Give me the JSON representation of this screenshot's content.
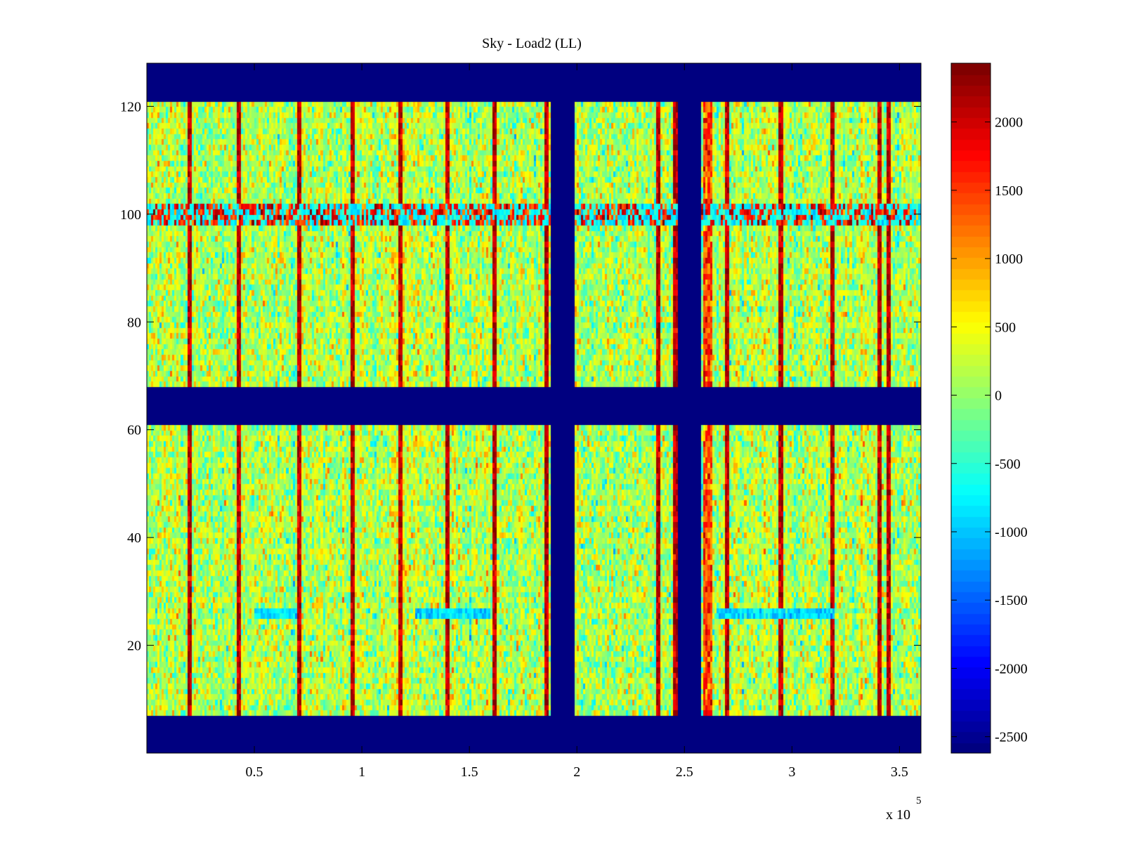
{
  "chart_data": {
    "type": "heatmap",
    "title": "Sky - Load2 (LL)",
    "xlabel": "",
    "ylabel": "",
    "x_exponent_label": "x 10",
    "x_exponent_power": "5",
    "xlim": [
      0,
      3.6
    ],
    "ylim": [
      0,
      128
    ],
    "x_ticks": [
      0.5,
      1,
      1.5,
      2,
      2.5,
      3,
      3.5
    ],
    "x_tick_labels": [
      "0.5",
      "1",
      "1.5",
      "2",
      "2.5",
      "3",
      "3.5"
    ],
    "y_ticks": [
      20,
      40,
      60,
      80,
      100,
      120
    ],
    "y_tick_labels": [
      "20",
      "40",
      "60",
      "80",
      "100",
      "120"
    ],
    "colorbar": {
      "colormap": "jet",
      "clim": [
        -2620,
        2430
      ],
      "ticks": [
        2000,
        1500,
        1000,
        500,
        0,
        -500,
        -1000,
        -1500,
        -2000,
        -2500
      ],
      "tick_labels": [
        "2000",
        "1500",
        "1000",
        "500",
        "0",
        "-500",
        "-1000",
        "-1500",
        "-2000",
        "-2500"
      ]
    },
    "background_value": -2600,
    "noise_mean": 150,
    "noise_std": 380,
    "masked_row_bands": [
      [
        0,
        7
      ],
      [
        61,
        68
      ],
      [
        121,
        128
      ]
    ],
    "masked_col_bands": [
      [
        1.885,
        1.995
      ],
      [
        2.475,
        2.585
      ]
    ],
    "hot_columns": [
      0.2,
      0.43,
      0.71,
      0.96,
      1.18,
      1.4,
      1.62,
      1.86,
      2.38,
      2.46,
      2.7,
      2.95,
      3.19,
      3.41,
      3.45
    ],
    "hot_column_value": 2100,
    "warm_band_x": [
      2.595,
      2.635
    ],
    "warm_band_value": 1400,
    "rfi_row": 100,
    "rfi_row_value": 1700,
    "cool_row_segments_x": [
      [
        0.5,
        0.7
      ],
      [
        1.25,
        1.6
      ],
      [
        2.65,
        3.2
      ]
    ],
    "cool_row_value": -900
  }
}
